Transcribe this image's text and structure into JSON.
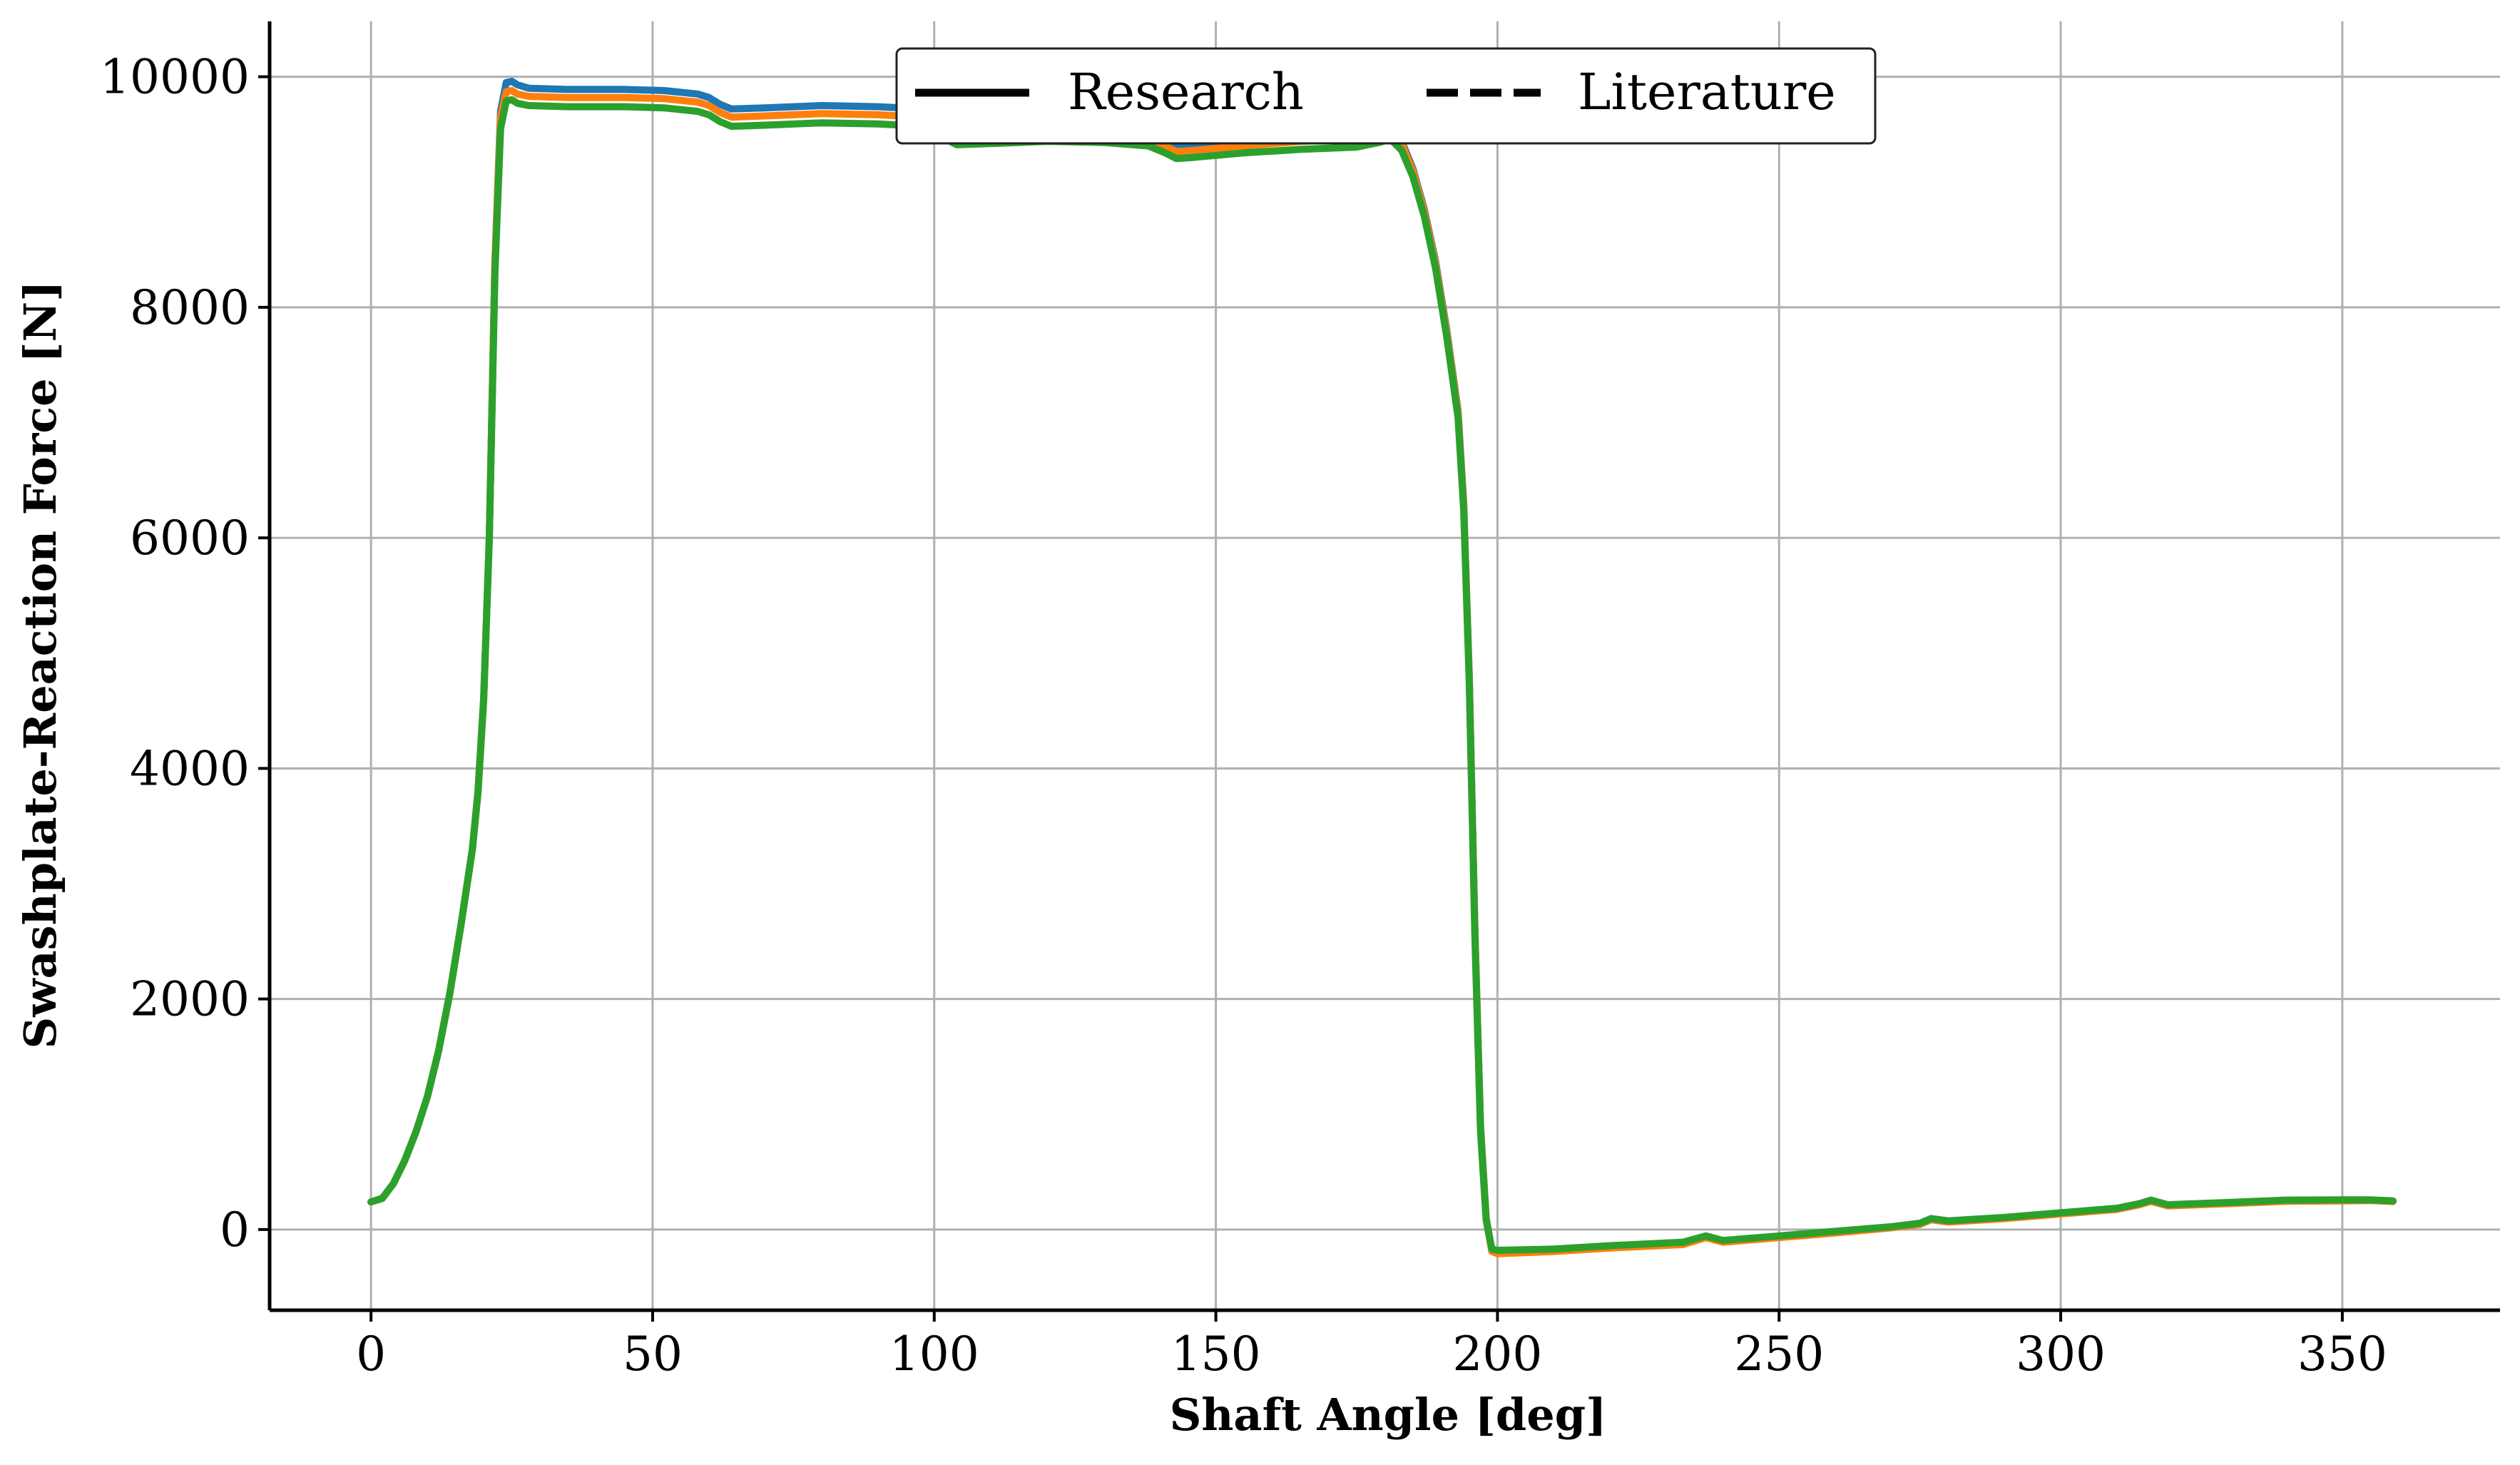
{
  "chart_data": {
    "type": "line",
    "title": "",
    "xlabel": "Shaft Angle [deg]",
    "ylabel": "Swashplate-Reaction Force [N]",
    "xlim": [
      -18,
      378
    ],
    "ylim": [
      -700,
      10480
    ],
    "xticks": [
      0,
      50,
      100,
      150,
      200,
      250,
      300,
      350
    ],
    "yticks": [
      0,
      2000,
      4000,
      6000,
      8000,
      10000
    ],
    "grid": true,
    "legend": {
      "placement": "top-center",
      "entries": [
        {
          "label": "Research",
          "style": "solid"
        },
        {
          "label": "Literature",
          "style": "dashed"
        }
      ]
    },
    "series": [
      {
        "color": "#1f77b4",
        "style": "solid",
        "points": [
          [
            0,
            240
          ],
          [
            2,
            270
          ],
          [
            4,
            400
          ],
          [
            6,
            600
          ],
          [
            8,
            850
          ],
          [
            10,
            1150
          ],
          [
            12,
            1550
          ],
          [
            14,
            2050
          ],
          [
            16,
            2650
          ],
          [
            18,
            3300
          ],
          [
            19,
            3800
          ],
          [
            20,
            4600
          ],
          [
            21,
            6000
          ],
          [
            22,
            8400
          ],
          [
            23,
            9700
          ],
          [
            24,
            9950
          ],
          [
            25,
            9960
          ],
          [
            26,
            9930
          ],
          [
            28,
            9900
          ],
          [
            35,
            9890
          ],
          [
            45,
            9890
          ],
          [
            52,
            9880
          ],
          [
            58,
            9850
          ],
          [
            60,
            9820
          ],
          [
            62,
            9760
          ],
          [
            64,
            9720
          ],
          [
            70,
            9730
          ],
          [
            80,
            9750
          ],
          [
            90,
            9740
          ],
          [
            98,
            9720
          ],
          [
            100,
            9680
          ],
          [
            102,
            9610
          ],
          [
            104,
            9550
          ],
          [
            110,
            9560
          ],
          [
            120,
            9570
          ],
          [
            130,
            9560
          ],
          [
            138,
            9530
          ],
          [
            141,
            9450
          ],
          [
            143,
            9400
          ],
          [
            146,
            9410
          ],
          [
            155,
            9440
          ],
          [
            165,
            9470
          ],
          [
            175,
            9490
          ],
          [
            179,
            9530
          ],
          [
            181,
            9560
          ],
          [
            183,
            9440
          ],
          [
            185,
            9200
          ],
          [
            187,
            8850
          ],
          [
            189,
            8400
          ],
          [
            191,
            7800
          ],
          [
            193,
            7100
          ],
          [
            194,
            6300
          ],
          [
            195,
            4800
          ],
          [
            196,
            2600
          ],
          [
            197,
            900
          ],
          [
            198,
            100
          ],
          [
            199,
            -180
          ],
          [
            200,
            -200
          ],
          [
            210,
            -180
          ],
          [
            220,
            -150
          ],
          [
            233,
            -120
          ],
          [
            237,
            -60
          ],
          [
            240,
            -100
          ],
          [
            250,
            -60
          ],
          [
            260,
            -20
          ],
          [
            270,
            20
          ],
          [
            275,
            50
          ],
          [
            277,
            90
          ],
          [
            280,
            70
          ],
          [
            290,
            100
          ],
          [
            300,
            140
          ],
          [
            310,
            180
          ],
          [
            314,
            220
          ],
          [
            316,
            250
          ],
          [
            319,
            210
          ],
          [
            330,
            230
          ],
          [
            340,
            250
          ],
          [
            350,
            250
          ],
          [
            355,
            255
          ],
          [
            359,
            245
          ]
        ]
      },
      {
        "color": "#ff7f0e",
        "style": "solid",
        "points": [
          [
            0,
            240
          ],
          [
            2,
            270
          ],
          [
            4,
            400
          ],
          [
            6,
            600
          ],
          [
            8,
            850
          ],
          [
            10,
            1150
          ],
          [
            12,
            1550
          ],
          [
            14,
            2050
          ],
          [
            16,
            2650
          ],
          [
            18,
            3300
          ],
          [
            19,
            3800
          ],
          [
            20,
            4600
          ],
          [
            21,
            6000
          ],
          [
            22,
            8400
          ],
          [
            23,
            9650
          ],
          [
            24,
            9870
          ],
          [
            25,
            9880
          ],
          [
            26,
            9850
          ],
          [
            28,
            9830
          ],
          [
            35,
            9820
          ],
          [
            45,
            9820
          ],
          [
            52,
            9810
          ],
          [
            58,
            9780
          ],
          [
            60,
            9750
          ],
          [
            62,
            9690
          ],
          [
            64,
            9650
          ],
          [
            70,
            9660
          ],
          [
            80,
            9680
          ],
          [
            90,
            9670
          ],
          [
            98,
            9650
          ],
          [
            100,
            9610
          ],
          [
            102,
            9540
          ],
          [
            104,
            9480
          ],
          [
            110,
            9490
          ],
          [
            120,
            9500
          ],
          [
            130,
            9490
          ],
          [
            138,
            9470
          ],
          [
            141,
            9400
          ],
          [
            143,
            9350
          ],
          [
            146,
            9360
          ],
          [
            155,
            9400
          ],
          [
            165,
            9440
          ],
          [
            175,
            9460
          ],
          [
            179,
            9510
          ],
          [
            181,
            9540
          ],
          [
            183,
            9420
          ],
          [
            185,
            9180
          ],
          [
            187,
            8830
          ],
          [
            189,
            8380
          ],
          [
            191,
            7780
          ],
          [
            193,
            7080
          ],
          [
            194,
            6280
          ],
          [
            195,
            4780
          ],
          [
            196,
            2580
          ],
          [
            197,
            880
          ],
          [
            198,
            90
          ],
          [
            199,
            -190
          ],
          [
            200,
            -210
          ],
          [
            210,
            -190
          ],
          [
            220,
            -160
          ],
          [
            233,
            -130
          ],
          [
            237,
            -70
          ],
          [
            240,
            -110
          ],
          [
            250,
            -70
          ],
          [
            260,
            -30
          ],
          [
            270,
            15
          ],
          [
            275,
            45
          ],
          [
            277,
            85
          ],
          [
            280,
            65
          ],
          [
            290,
            95
          ],
          [
            300,
            135
          ],
          [
            310,
            175
          ],
          [
            314,
            215
          ],
          [
            316,
            245
          ],
          [
            319,
            205
          ],
          [
            330,
            225
          ],
          [
            340,
            245
          ],
          [
            350,
            248
          ],
          [
            355,
            252
          ],
          [
            359,
            243
          ]
        ]
      },
      {
        "color": "#2ca02c",
        "style": "solid",
        "points": [
          [
            0,
            240
          ],
          [
            2,
            270
          ],
          [
            4,
            400
          ],
          [
            6,
            600
          ],
          [
            8,
            850
          ],
          [
            10,
            1150
          ],
          [
            12,
            1550
          ],
          [
            14,
            2050
          ],
          [
            16,
            2650
          ],
          [
            18,
            3300
          ],
          [
            19,
            3800
          ],
          [
            20,
            4600
          ],
          [
            21,
            6000
          ],
          [
            22,
            8300
          ],
          [
            23,
            9550
          ],
          [
            24,
            9790
          ],
          [
            25,
            9800
          ],
          [
            26,
            9770
          ],
          [
            28,
            9750
          ],
          [
            35,
            9740
          ],
          [
            45,
            9740
          ],
          [
            52,
            9730
          ],
          [
            58,
            9700
          ],
          [
            60,
            9670
          ],
          [
            62,
            9610
          ],
          [
            64,
            9570
          ],
          [
            70,
            9580
          ],
          [
            80,
            9600
          ],
          [
            90,
            9590
          ],
          [
            98,
            9570
          ],
          [
            100,
            9530
          ],
          [
            102,
            9460
          ],
          [
            104,
            9410
          ],
          [
            110,
            9420
          ],
          [
            120,
            9440
          ],
          [
            130,
            9430
          ],
          [
            138,
            9400
          ],
          [
            141,
            9340
          ],
          [
            143,
            9290
          ],
          [
            146,
            9300
          ],
          [
            155,
            9340
          ],
          [
            165,
            9370
          ],
          [
            175,
            9390
          ],
          [
            179,
            9430
          ],
          [
            181,
            9460
          ],
          [
            183,
            9360
          ],
          [
            185,
            9130
          ],
          [
            187,
            8790
          ],
          [
            189,
            8340
          ],
          [
            191,
            7740
          ],
          [
            193,
            7040
          ],
          [
            194,
            6240
          ],
          [
            195,
            4740
          ],
          [
            196,
            2540
          ],
          [
            197,
            850
          ],
          [
            198,
            80
          ],
          [
            199,
            -170
          ],
          [
            200,
            -180
          ],
          [
            210,
            -170
          ],
          [
            220,
            -140
          ],
          [
            233,
            -110
          ],
          [
            237,
            -55
          ],
          [
            240,
            -95
          ],
          [
            250,
            -55
          ],
          [
            260,
            -15
          ],
          [
            270,
            25
          ],
          [
            275,
            55
          ],
          [
            277,
            95
          ],
          [
            280,
            75
          ],
          [
            290,
            105
          ],
          [
            300,
            145
          ],
          [
            310,
            185
          ],
          [
            314,
            225
          ],
          [
            316,
            255
          ],
          [
            319,
            215
          ],
          [
            330,
            235
          ],
          [
            340,
            255
          ],
          [
            350,
            258
          ],
          [
            355,
            258
          ],
          [
            359,
            248
          ]
        ]
      }
    ]
  }
}
